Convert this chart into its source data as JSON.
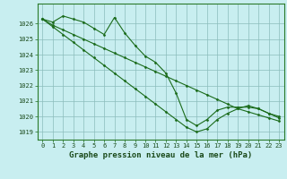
{
  "bg_color": "#c8eef0",
  "grid_color": "#8bbcbc",
  "line_color": "#1a6b1a",
  "marker_color": "#1a6b1a",
  "xlabel": "Graphe pression niveau de la mer (hPa)",
  "xlabel_fontsize": 6.5,
  "tick_fontsize": 5.0,
  "xtick_labels": [
    "0",
    "1",
    "2",
    "3",
    "4",
    "5",
    "6",
    "7",
    "8",
    "9",
    "10",
    "11",
    "12",
    "13",
    "14",
    "15",
    "16",
    "17",
    "18",
    "19",
    "20",
    "21",
    "22",
    "23"
  ],
  "ylim": [
    1018.5,
    1027.3
  ],
  "yticks": [
    1019,
    1020,
    1021,
    1022,
    1023,
    1024,
    1025,
    1026
  ],
  "series": [
    [
      1026.3,
      1026.1,
      1026.5,
      1026.3,
      1026.1,
      1025.7,
      1025.3,
      1026.4,
      1025.4,
      1024.6,
      1023.9,
      1023.5,
      1022.8,
      1021.5,
      1019.8,
      1019.4,
      1019.8,
      1020.4,
      1020.6,
      1020.6,
      1020.6,
      1020.5,
      1020.2,
      1020.0
    ],
    [
      1026.3,
      1025.9,
      1025.6,
      1025.3,
      1025.0,
      1024.7,
      1024.4,
      1024.1,
      1023.8,
      1023.5,
      1023.2,
      1022.9,
      1022.6,
      1022.3,
      1022.0,
      1021.7,
      1021.4,
      1021.1,
      1020.8,
      1020.5,
      1020.3,
      1020.1,
      1019.9,
      1019.7
    ],
    [
      1026.3,
      1025.8,
      1025.3,
      1024.8,
      1024.3,
      1023.8,
      1023.3,
      1022.8,
      1022.3,
      1021.8,
      1021.3,
      1020.8,
      1020.3,
      1019.8,
      1019.3,
      1019.0,
      1019.2,
      1019.8,
      1020.2,
      1020.5,
      1020.7,
      1020.5,
      1020.2,
      1019.9
    ]
  ]
}
